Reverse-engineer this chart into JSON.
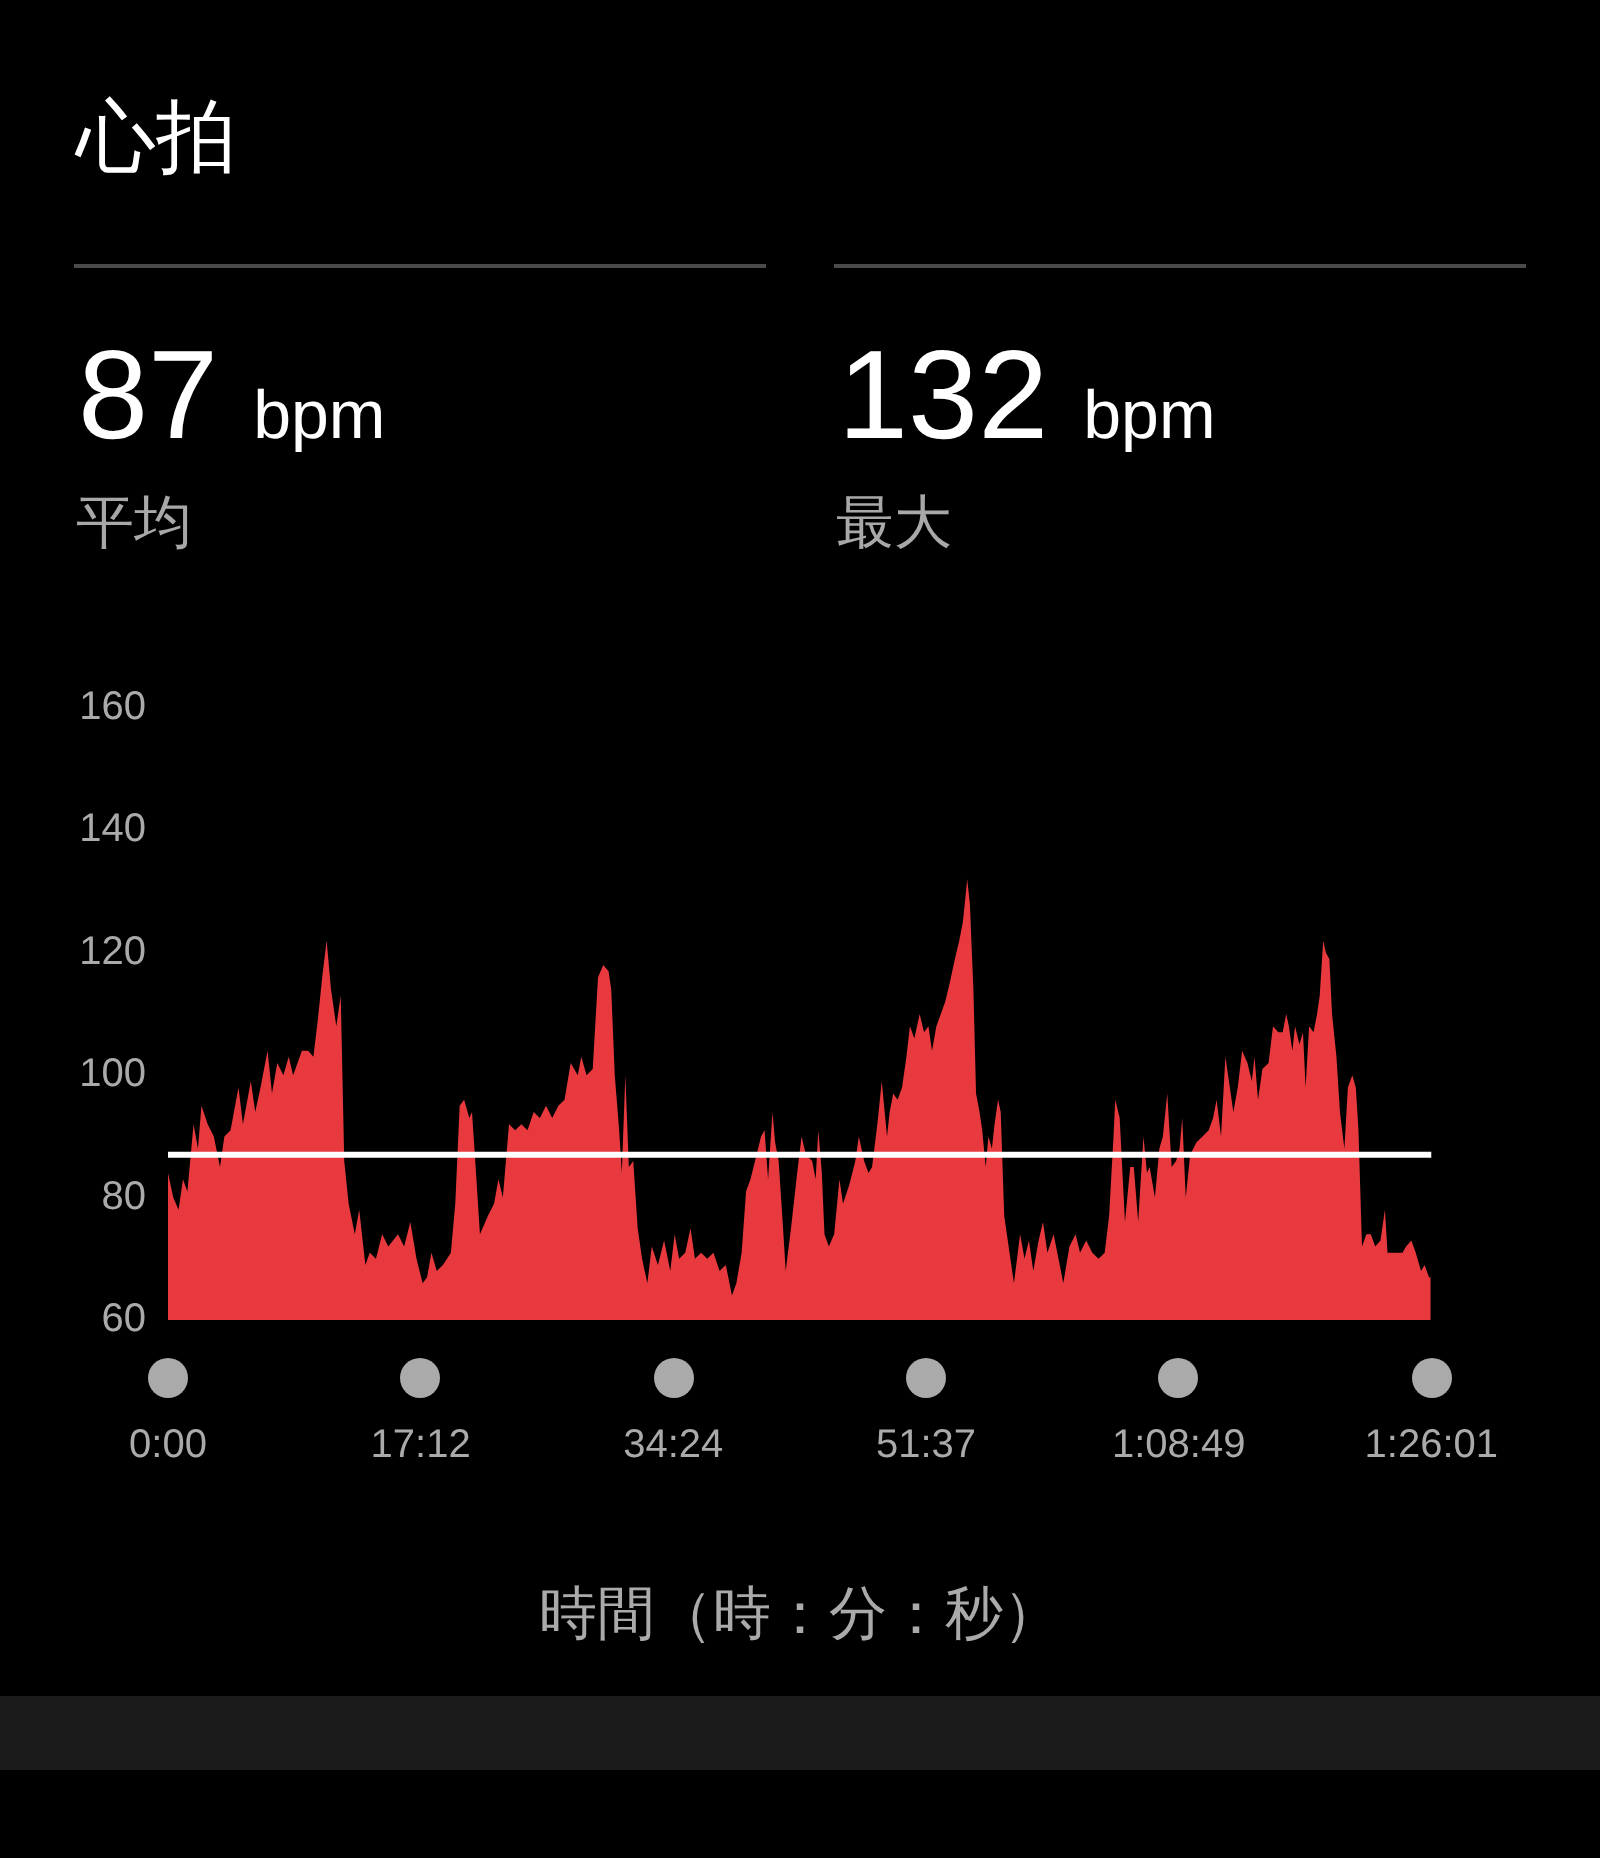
{
  "chart_data": {
    "type": "area",
    "title": "心拍",
    "annotations": [
      "87 bpm",
      "平均",
      "132 bpm",
      "最大"
    ],
    "xlabel": "時間（時：分：秒）",
    "color": "#e83a3e",
    "x": [
      0,
      0.36,
      0.72,
      1.02,
      1.32,
      1.74,
      2.04,
      2.28,
      2.7,
      3.12,
      3.54,
      3.84,
      4.26,
      4.8,
      5.1,
      5.64,
      5.94,
      6.3,
      6.78,
      7.08,
      7.44,
      7.86,
      8.22,
      8.52,
      9.12,
      9.54,
      9.9,
      10.2,
      10.5,
      10.8,
      11.1,
      11.46,
      11.76,
      12,
      12.3,
      12.72,
      13.02,
      13.44,
      13.74,
      14.16,
      14.58,
      15,
      15.66,
      16.08,
      16.5,
      16.92,
      17.34,
      17.64,
      17.94,
      18.3,
      18.72,
      19.26,
      19.56,
      19.86,
      20.16,
      20.52,
      20.7,
      21,
      21.24,
      21.78,
      22.2,
      22.5,
      22.8,
      23.22,
      23.64,
      24.06,
      24.48,
      24.9,
      25.32,
      25.74,
      26.16,
      26.58,
      27,
      27.42,
      27.9,
      28.14,
      28.5,
      28.92,
      29.28,
      29.64,
      30,
      30.18,
      30.42,
      30.72,
      30.9,
      31.14,
      31.38,
      31.68,
      31.98,
      32.28,
      32.64,
      32.94,
      33.36,
      33.78,
      34.2,
      34.5,
      34.8,
      35.22,
      35.58,
      35.88,
      36.3,
      36.72,
      37.14,
      37.56,
      37.98,
      38.4,
      38.7,
      39.06,
      39.36,
      39.66,
      40.08,
      40.38,
      40.62,
      40.86,
      41.16,
      41.34,
      41.58,
      41.88,
      42.06,
      42.42,
      42.84,
      43.14,
      43.44,
      43.86,
      44.1,
      44.28,
      44.52,
      44.7,
      45,
      45.36,
      45.72,
      45.96,
      46.38,
      46.8,
      47.04,
      47.4,
      47.7,
      47.94,
      48.3,
      48.6,
      48.96,
      49.14,
      49.38,
      49.68,
      49.98,
      50.28,
      50.52,
      50.82,
      51.18,
      51.48,
      51.78,
      52.02,
      52.32,
      52.62,
      52.92,
      53.22,
      53.58,
      53.88,
      54.12,
      54.42,
      54.6,
      54.84,
      55.02,
      55.26,
      55.44,
      55.68,
      55.86,
      56.1,
      56.28,
      56.52,
      56.7,
      56.94,
      57.24,
      57.6,
      58.02,
      58.32,
      58.62,
      58.92,
      59.28,
      59.58,
      59.88,
      60.3,
      60.72,
      60.96,
      61.38,
      61.8,
      62.1,
      62.52,
      62.94,
      63.36,
      63.78,
      64.08,
      64.38,
      64.5,
      64.8,
      65.16,
      65.52,
      65.76,
      66.06,
      66.42,
      66.66,
      66.84,
      67.2,
      67.5,
      67.74,
      68.04,
      68.34,
      68.64,
      68.88,
      69.06,
      69.3,
      69.6,
      70.02,
      70.44,
      70.86,
      71.16,
      71.4,
      71.7,
      72,
      72.24,
      72.54,
      72.84,
      73.14,
      73.5,
      73.8,
      73.98,
      74.22,
      74.52,
      74.94,
      75.24,
      75.6,
      75.9,
      76.14,
      76.32,
      76.56,
      76.74,
      77.04,
      77.28,
      77.46,
      77.7,
      78,
      78.24,
      78.42,
      78.66,
      78.84,
      79.08,
      79.26,
      79.56,
      79.8,
      80.1,
      80.34,
      80.64,
      80.88,
      81.06,
      81.3,
      81.6,
      81.9,
      82.2,
      82.56,
      82.86,
      83.04,
      83.34,
      83.7,
      84.06,
      84.3,
      84.66,
      84.96,
      85.32,
      85.56,
      85.86,
      85.98
    ],
    "values": [
      84,
      80,
      78,
      83,
      81,
      92,
      88,
      95,
      92,
      90,
      85,
      90,
      91,
      98,
      92,
      99,
      94,
      98,
      104,
      97,
      102,
      100,
      103,
      100,
      104,
      104,
      103,
      109,
      116,
      122,
      114,
      108,
      113,
      86,
      79,
      74,
      78,
      69,
      71,
      70,
      74,
      72,
      74,
      72,
      76,
      70,
      66,
      67,
      71,
      68,
      69,
      71,
      79,
      95,
      96,
      93,
      94,
      83,
      74,
      77,
      79,
      83,
      80,
      92,
      91,
      92,
      91,
      94,
      93,
      95,
      93,
      95,
      96,
      102,
      100,
      103,
      100,
      101,
      116,
      118,
      117,
      114,
      100,
      91,
      84,
      100,
      85,
      86,
      75,
      70,
      66,
      72,
      69,
      73,
      68,
      74,
      70,
      71,
      75,
      70,
      71,
      70,
      71,
      68,
      69,
      64,
      66,
      71,
      81,
      83,
      87,
      90,
      91,
      83,
      94,
      89,
      86,
      75,
      68,
      75,
      84,
      90,
      87,
      86,
      83,
      91,
      84,
      74,
      72,
      74,
      83,
      79,
      82,
      86,
      90,
      86,
      84,
      85,
      92,
      99,
      90,
      94,
      97,
      96,
      98,
      103,
      108,
      106,
      110,
      107,
      108,
      104,
      108,
      110,
      112,
      115,
      119,
      122,
      125,
      132,
      128,
      114,
      97,
      94,
      91,
      85,
      90,
      88,
      92,
      96,
      94,
      77,
      72,
      66,
      74,
      70,
      73,
      68,
      73,
      76,
      71,
      74,
      69,
      66,
      72,
      74,
      71,
      73,
      71,
      70,
      71,
      77,
      90,
      96,
      93,
      76,
      85,
      85,
      76,
      90,
      84,
      85,
      80,
      88,
      90,
      97,
      85,
      86,
      88,
      93,
      80,
      87,
      89,
      90,
      91,
      93,
      96,
      90,
      103,
      99,
      94,
      98,
      104,
      102,
      99,
      103,
      96,
      101,
      102,
      108,
      107,
      107,
      110,
      108,
      104,
      108,
      105,
      107,
      98,
      108,
      107,
      110,
      113,
      122,
      120,
      119,
      110,
      103,
      94,
      88,
      98,
      100,
      98,
      91,
      72,
      74,
      74,
      72,
      73,
      78,
      71,
      71,
      71,
      71,
      72,
      73,
      71,
      68,
      69,
      67,
      67
    ],
    "xlim": [
      0,
      86.017
    ],
    "xticks": [
      {
        "value": 0,
        "label": "0:00"
      },
      {
        "value": 17.2,
        "label": "17:12"
      },
      {
        "value": 34.4,
        "label": "34:24"
      },
      {
        "value": 51.617,
        "label": "51:37"
      },
      {
        "value": 68.817,
        "label": "1:08:49"
      },
      {
        "value": 86.017,
        "label": "1:26:01"
      }
    ],
    "ylim": [
      60,
      160
    ],
    "yticks": [
      60,
      80,
      100,
      120,
      140,
      160
    ],
    "ref_lines": [
      {
        "axis": "y",
        "value": 87,
        "color": "#ffffff"
      }
    ]
  }
}
